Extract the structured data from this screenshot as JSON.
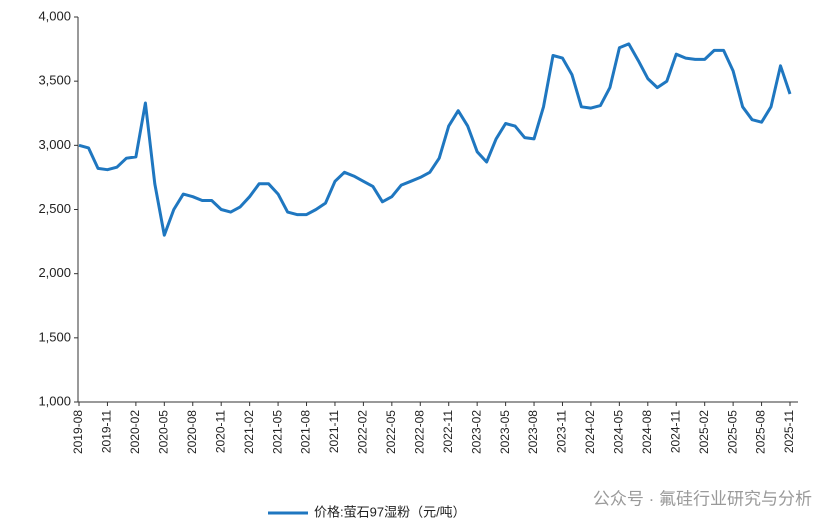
{
  "chart_data": {
    "type": "line",
    "categories": [
      "2019-08",
      null,
      null,
      "2019-11",
      null,
      null,
      "2020-02",
      null,
      null,
      "2020-05",
      null,
      null,
      "2020-08",
      null,
      null,
      "2020-11",
      null,
      null,
      "2021-02",
      null,
      null,
      "2021-05",
      null,
      null,
      "2021-08",
      null,
      null,
      "2021-11",
      null,
      null,
      "2022-02",
      null,
      null,
      "2022-05",
      null,
      null,
      "2022-08",
      null,
      null,
      "2022-11",
      null,
      null,
      "2023-02",
      null,
      null,
      "2023-05",
      null,
      null,
      "2023-08",
      null,
      null,
      "2023-11",
      null,
      null,
      "2024-02",
      null,
      null,
      "2024-05",
      null,
      null,
      "2024-08",
      null,
      null,
      "2024-11",
      null,
      null,
      "2025-02",
      null,
      null,
      "2025-05",
      null,
      null,
      "2025-08",
      null,
      null,
      "2025-11"
    ],
    "series": [
      {
        "name": "价格:萤石97湿粉（元/吨）",
        "color": "#1f77c0",
        "values": [
          3000,
          2980,
          2820,
          2810,
          2830,
          2900,
          2910,
          3330,
          2700,
          2300,
          2500,
          2620,
          2600,
          2570,
          2570,
          2500,
          2480,
          2520,
          2600,
          2700,
          2700,
          2620,
          2480,
          2460,
          2460,
          2500,
          2550,
          2720,
          2790,
          2760,
          2720,
          2680,
          2560,
          2600,
          2690,
          2720,
          2750,
          2790,
          2900,
          3150,
          3270,
          3150,
          2950,
          2870,
          3050,
          3170,
          3150,
          3060,
          3050,
          3300,
          3700,
          3680,
          3550,
          3300,
          3290,
          3310,
          3450,
          3760,
          3790,
          3660,
          3520,
          3450,
          3500,
          3710,
          3680,
          3670,
          3670,
          3740,
          3740,
          3580,
          3300,
          3200,
          3180,
          3300,
          3620,
          3400
        ]
      }
    ],
    "ylim": [
      1000,
      4000
    ],
    "yticks": [
      {
        "value": 1000,
        "label": "1,000"
      },
      {
        "value": 1500,
        "label": "1,500"
      },
      {
        "value": 2000,
        "label": "2,000"
      },
      {
        "value": 2500,
        "label": "2,500"
      },
      {
        "value": 3000,
        "label": "3,000"
      },
      {
        "value": 3500,
        "label": "3,500"
      },
      {
        "value": 4000,
        "label": "4,000"
      }
    ],
    "grid": false,
    "watermark": "公众号 · 氟硅行业研究与分析"
  }
}
